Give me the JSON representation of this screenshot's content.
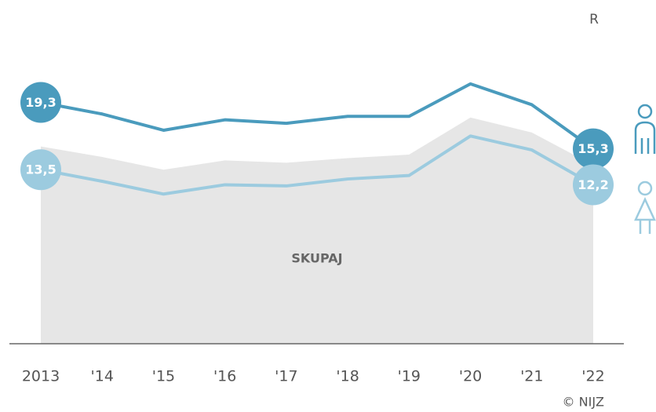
{
  "chart_data": {
    "type": "line",
    "corner_text": "R",
    "source": "© NIJZ",
    "categories": [
      "2013",
      "'14",
      "'15",
      "'16",
      "'17",
      "'18",
      "'19",
      "'20",
      "'21",
      "'22"
    ],
    "ylim": [
      -1.5,
      24
    ],
    "series": [
      {
        "name": "SKUPAJ",
        "type": "area",
        "color": "#e6e6e6",
        "values": [
          15.5,
          14.6,
          13.5,
          14.3,
          14.1,
          14.5,
          14.8,
          18.0,
          16.7,
          13.9
        ]
      },
      {
        "type": "line",
        "color": "#4a9bbd",
        "values": [
          19.3,
          18.3,
          16.9,
          17.8,
          17.5,
          18.1,
          18.1,
          20.9,
          19.1,
          15.3
        ],
        "value_labels": [
          "19,3",
          null,
          null,
          null,
          null,
          null,
          null,
          null,
          null,
          "15,3"
        ]
      },
      {
        "type": "line",
        "color": "#9ccbdf",
        "values": [
          13.5,
          12.5,
          11.4,
          12.2,
          12.1,
          12.7,
          13.0,
          16.4,
          15.2,
          12.2
        ],
        "value_labels": [
          "13,5",
          null,
          null,
          null,
          null,
          null,
          null,
          null,
          null,
          "12,2"
        ]
      }
    ]
  }
}
